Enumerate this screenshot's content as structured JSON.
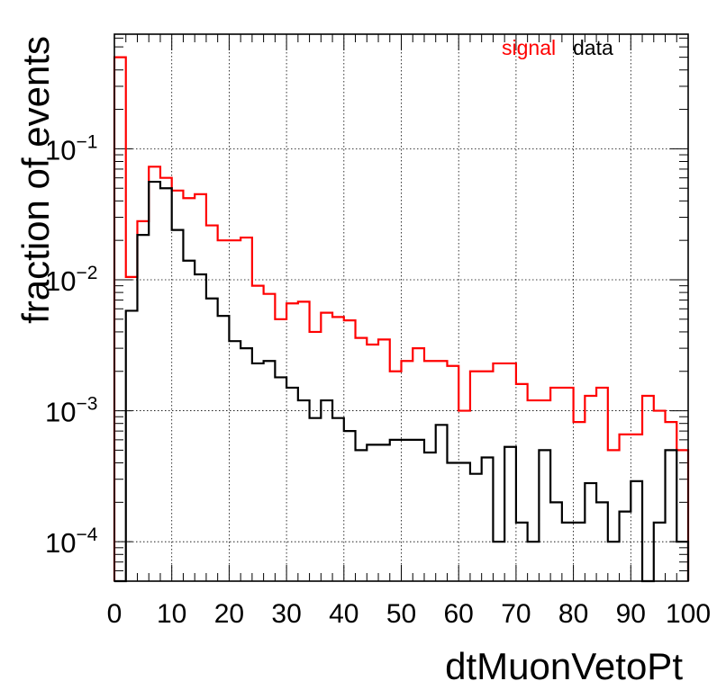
{
  "chart_data": {
    "type": "histogram",
    "xlabel": "dtMuonVetoPt",
    "ylabel": "fraction of events",
    "xlim": [
      0,
      100
    ],
    "ylim": [
      5e-05,
      0.75
    ],
    "yscale": "log",
    "grid": true,
    "legend_position": "top-right",
    "x_ticks": [
      "0",
      "10",
      "20",
      "30",
      "40",
      "50",
      "60",
      "70",
      "80",
      "90",
      "100"
    ],
    "y_ticks": [
      {
        "value": 0.0001,
        "base": "10",
        "exp": "−4"
      },
      {
        "value": 0.001,
        "base": "10",
        "exp": "−3"
      },
      {
        "value": 0.01,
        "base": "10",
        "exp": "−2"
      },
      {
        "value": 0.1,
        "base": "10",
        "exp": "−1"
      }
    ],
    "bin_edges": [
      0,
      2,
      4,
      6,
      8,
      10,
      12,
      14,
      16,
      18,
      20,
      22,
      24,
      26,
      28,
      30,
      32,
      34,
      36,
      38,
      40,
      42,
      44,
      46,
      48,
      50,
      52,
      54,
      56,
      58,
      60,
      62,
      64,
      66,
      68,
      70,
      72,
      74,
      76,
      78,
      80,
      82,
      84,
      86,
      88,
      90,
      92,
      94,
      96,
      98,
      100
    ],
    "series": [
      {
        "name": "signal",
        "color": "#ff0000",
        "values": [
          0.5,
          0.0105,
          0.028,
          0.073,
          0.06,
          0.048,
          0.042,
          0.045,
          0.026,
          0.02,
          0.02,
          0.021,
          0.009,
          0.0078,
          0.005,
          0.0066,
          0.0068,
          0.004,
          0.0056,
          0.0052,
          0.0049,
          0.0036,
          0.0032,
          0.0035,
          0.002,
          0.0024,
          0.003,
          0.0024,
          0.0024,
          0.0022,
          0.001,
          0.002,
          0.002,
          0.0023,
          0.0023,
          0.0016,
          0.0012,
          0.0012,
          0.0015,
          0.0015,
          0.00082,
          0.0013,
          0.0015,
          0.0005,
          0.00066,
          0.00066,
          0.0013,
          0.001,
          0.00082,
          0.0005
        ]
      },
      {
        "name": "data",
        "color": "#000000",
        "values": [
          5e-05,
          0.0058,
          0.022,
          0.056,
          0.05,
          0.024,
          0.014,
          0.011,
          0.0072,
          0.0053,
          0.0034,
          0.003,
          0.0023,
          0.0024,
          0.0018,
          0.0015,
          0.0012,
          0.00088,
          0.0012,
          0.00088,
          0.0007,
          0.0005,
          0.00055,
          0.00055,
          0.0006,
          0.0006,
          0.0006,
          0.00048,
          0.00078,
          0.0004,
          0.0004,
          0.00033,
          0.00044,
          0.0001,
          0.00053,
          0.00014,
          0.0001,
          0.0005,
          0.0002,
          0.00014,
          0.00014,
          0.00028,
          0.0002,
          0.0001,
          0.00017,
          0.00029,
          5e-05,
          0.00014,
          0.0005,
          0.0001
        ]
      }
    ]
  }
}
